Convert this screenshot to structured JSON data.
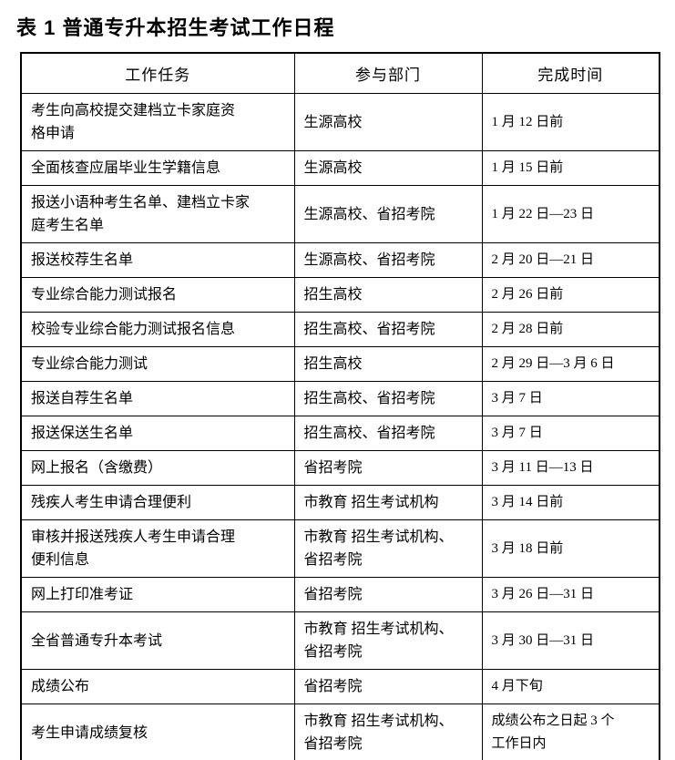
{
  "page": {
    "title": "表 1  普通专升本招生考试工作日程"
  },
  "table": {
    "headers": [
      "工作任务",
      "参与部门",
      "完成时间"
    ],
    "rows": [
      {
        "task": "考生向高校提交建档立卡家庭资\n格申请",
        "dept": "生源高校",
        "time": "1 月 12 日前"
      },
      {
        "task": "全面核查应届毕业生学籍信息",
        "dept": "生源高校",
        "time": "1 月 15 日前"
      },
      {
        "task": "报送小语种考生名单、建档立卡家\n庭考生名单",
        "dept": "生源高校、省招考院",
        "time": "1 月 22 日—23 日"
      },
      {
        "task": "报送校荐生名单",
        "dept": "生源高校、省招考院",
        "time": "2 月 20 日—21 日"
      },
      {
        "task": "专业综合能力测试报名",
        "dept": "招生高校",
        "time": "2 月 26 日前"
      },
      {
        "task": "校验专业综合能力测试报名信息",
        "dept": "招生高校、省招考院",
        "time": "2 月 28 日前"
      },
      {
        "task": "专业综合能力测试",
        "dept": "招生高校",
        "time": "2 月 29 日—3 月 6 日"
      },
      {
        "task": "报送自荐生名单",
        "dept": "招生高校、省招考院",
        "time": "3 月 7 日"
      },
      {
        "task": "报送保送生名单",
        "dept": "招生高校、省招考院",
        "time": "3 月 7 日"
      },
      {
        "task": "网上报名（含缴费）",
        "dept": "省招考院",
        "time": "3 月 11 日—13 日"
      },
      {
        "task": "残疾人考生申请合理便利",
        "dept": "市教育 招生考试机构",
        "time": "3 月 14 日前"
      },
      {
        "task": "审核并报送残疾人考生申请合理\n便利信息",
        "dept": "市教育 招生考试机构、\n省招考院",
        "time": "3 月 18 日前"
      },
      {
        "task": "网上打印准考证",
        "dept": "省招考院",
        "time": "3 月 26 日—31 日"
      },
      {
        "task": "全省普通专升本考试",
        "dept": "市教育 招生考试机构、\n省招考院",
        "time": "3 月 30 日—31 日"
      },
      {
        "task": "成绩公布",
        "dept": "省招考院",
        "time": "4 月下旬"
      },
      {
        "task": "考生申请成绩复核",
        "dept": "市教育 招生考试机构、\n省招考院",
        "time": "成绩公布之日起 3 个\n工作日内"
      }
    ]
  },
  "colors": {
    "text": "#000000",
    "border": "#000000",
    "background": "#ffffff"
  }
}
